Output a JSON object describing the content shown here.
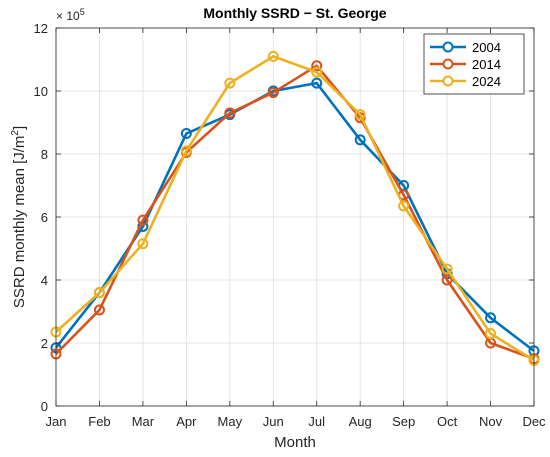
{
  "chart_data": {
    "type": "line",
    "title": "Monthly SSRD − St. George",
    "xlabel": "Month",
    "ylabel_main": "SSRD monthly mean [J/m",
    "ylabel_sup": "2",
    "ylabel_close": "]",
    "y_exponent_base": "× 10",
    "y_exponent_power": "5",
    "categories": [
      "Jan",
      "Feb",
      "Mar",
      "Apr",
      "May",
      "Jun",
      "Jul",
      "Aug",
      "Sep",
      "Oct",
      "Nov",
      "Dec"
    ],
    "ylim": [
      0,
      12
    ],
    "yticks": [
      "0",
      "2",
      "4",
      "6",
      "8",
      "10",
      "12"
    ],
    "grid": true,
    "legend_position": "top-right",
    "series": [
      {
        "name": "2004",
        "color": "#0072BD",
        "values": [
          1.85,
          3.6,
          5.7,
          8.65,
          9.25,
          10.0,
          10.25,
          8.45,
          7.0,
          4.2,
          2.8,
          1.75
        ]
      },
      {
        "name": "2014",
        "color": "#D95319",
        "values": [
          1.65,
          3.05,
          5.9,
          8.05,
          9.3,
          9.95,
          10.8,
          9.15,
          6.7,
          4.0,
          2.0,
          1.5
        ]
      },
      {
        "name": "2024",
        "color": "#EDB120",
        "values": [
          2.35,
          3.6,
          5.15,
          8.1,
          10.25,
          11.1,
          10.6,
          9.25,
          6.35,
          4.35,
          2.3,
          1.45
        ]
      }
    ]
  }
}
